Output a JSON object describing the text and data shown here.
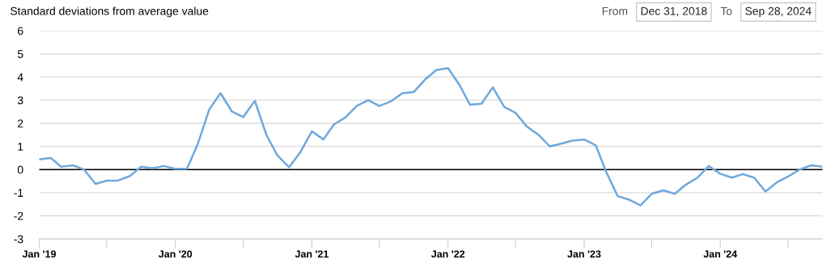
{
  "chart_data": {
    "type": "line",
    "ylabel": "Standard deviations from average value",
    "annotations": [
      "From",
      "Dec 31, 2018",
      "To",
      "Sep 28, 2024"
    ],
    "x": [
      "2019-01",
      "2019-02",
      "2019-03",
      "2019-04",
      "2019-05",
      "2019-06",
      "2019-07",
      "2019-08",
      "2019-09",
      "2019-10",
      "2019-11",
      "2019-12",
      "2020-01",
      "2020-02",
      "2020-03",
      "2020-04",
      "2020-05",
      "2020-06",
      "2020-07",
      "2020-08",
      "2020-09",
      "2020-10",
      "2020-11",
      "2020-12",
      "2021-01",
      "2021-02",
      "2021-03",
      "2021-04",
      "2021-05",
      "2021-06",
      "2021-07",
      "2021-08",
      "2021-09",
      "2021-10",
      "2021-11",
      "2021-12",
      "2022-01",
      "2022-02",
      "2022-03",
      "2022-04",
      "2022-05",
      "2022-06",
      "2022-07",
      "2022-08",
      "2022-09",
      "2022-10",
      "2022-11",
      "2022-12",
      "2023-01",
      "2023-02",
      "2023-03",
      "2023-04",
      "2023-05",
      "2023-06",
      "2023-07",
      "2023-08",
      "2023-09",
      "2023-10",
      "2023-11",
      "2023-12",
      "2024-01",
      "2024-02",
      "2024-03",
      "2024-04",
      "2024-05",
      "2024-06",
      "2024-07",
      "2024-08",
      "2024-09",
      "2024-10"
    ],
    "series": [
      {
        "color": "#6fa8dc",
        "values": [
          0.44,
          0.5,
          0.12,
          0.18,
          0.0,
          -0.62,
          -0.48,
          -0.47,
          -0.28,
          0.12,
          0.06,
          0.15,
          0.03,
          0.03,
          1.1,
          2.6,
          3.3,
          2.5,
          2.27,
          2.97,
          1.5,
          0.6,
          0.1,
          0.75,
          1.65,
          1.3,
          1.95,
          2.25,
          2.75,
          3.0,
          2.75,
          2.95,
          3.3,
          3.35,
          3.9,
          4.3,
          4.38,
          3.65,
          2.8,
          2.85,
          3.55,
          2.7,
          2.45,
          1.85,
          1.5,
          1.0,
          1.12,
          1.25,
          1.3,
          1.05,
          -0.1,
          -1.15,
          -1.3,
          -1.55,
          -1.05,
          -0.9,
          -1.05,
          -0.65,
          -0.35,
          0.15,
          -0.18,
          -0.35,
          -0.2,
          -0.35,
          -0.95,
          -0.55,
          -0.3,
          0.0,
          0.18,
          0.12
        ]
      }
    ],
    "xlim": [
      "2019-01",
      "2024-10"
    ],
    "xticks": [
      {
        "value": "2019-01",
        "label": "Jan '19"
      },
      {
        "value": "2019-07",
        "label": null
      },
      {
        "value": "2020-01",
        "label": "Jan '20"
      },
      {
        "value": "2020-07",
        "label": null
      },
      {
        "value": "2021-01",
        "label": "Jan '21"
      },
      {
        "value": "2021-07",
        "label": null
      },
      {
        "value": "2022-01",
        "label": "Jan '22"
      },
      {
        "value": "2022-07",
        "label": null
      },
      {
        "value": "2023-01",
        "label": "Jan '23"
      },
      {
        "value": "2023-07",
        "label": null
      },
      {
        "value": "2024-01",
        "label": "Jan '24"
      },
      {
        "value": "2024-07",
        "label": null
      }
    ],
    "ylim": [
      -3,
      6
    ],
    "yticks": [
      -3,
      -2,
      -1,
      0,
      1,
      2,
      3,
      4,
      5,
      6
    ],
    "grid": "y",
    "marker": "none",
    "line_style": "solid",
    "ref_lines": [
      {
        "axis": "y",
        "value": 0,
        "label": null,
        "color": "#000000"
      }
    ]
  }
}
